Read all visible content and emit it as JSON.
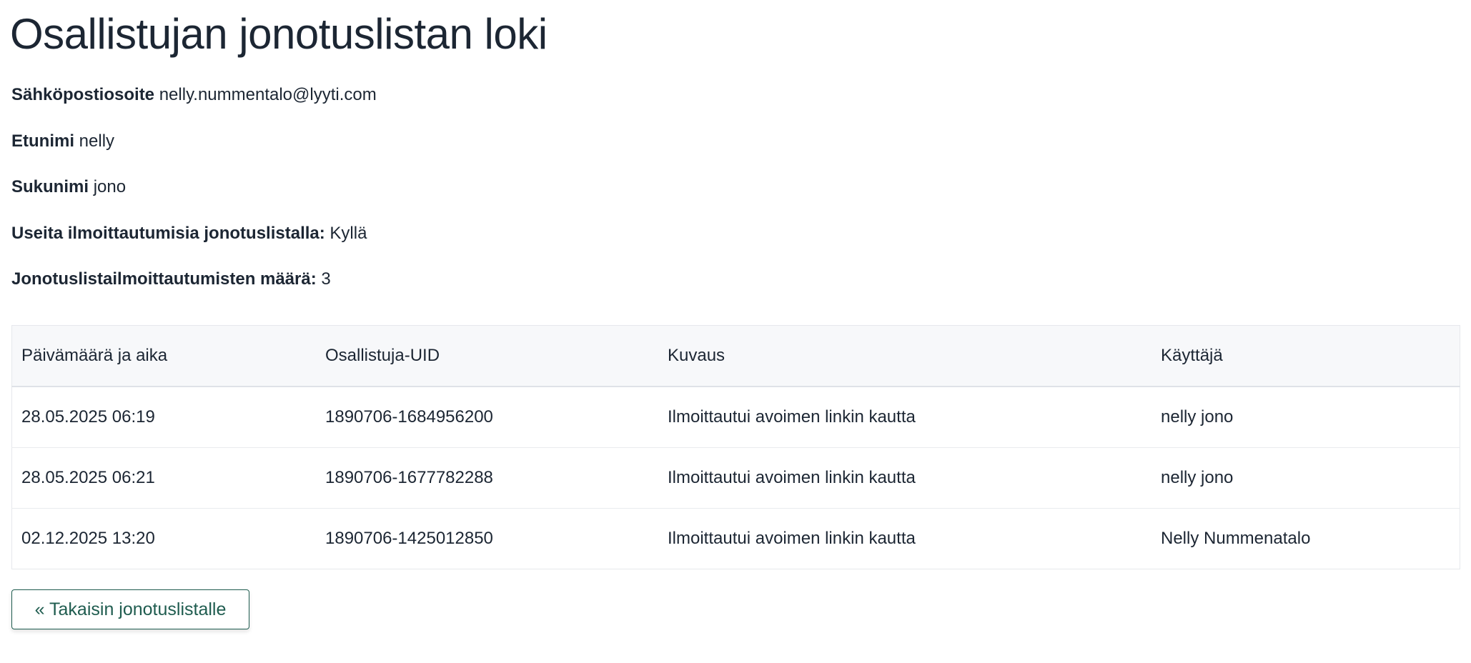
{
  "title": "Osallistujan jonotuslistan loki",
  "fields": [
    {
      "label": "Sähköpostiosoite",
      "value": "nelly.nummentalo@lyyti.com"
    },
    {
      "label": "Etunimi",
      "value": "nelly"
    },
    {
      "label": "Sukunimi",
      "value": "jono"
    },
    {
      "label": "Useita ilmoittautumisia jonotuslistalla:",
      "value": "Kyllä"
    },
    {
      "label": "Jonotuslistailmoittautumisten määrä:",
      "value": "3"
    }
  ],
  "table": {
    "headers": [
      "Päivämäärä ja aika",
      "Osallistuja-UID",
      "Kuvaus",
      "Käyttäjä"
    ],
    "rows": [
      [
        "28.05.2025 06:19",
        "1890706-1684956200",
        "Ilmoittautui avoimen linkin kautta",
        "nelly jono"
      ],
      [
        "28.05.2025 06:21",
        "1890706-1677782288",
        "Ilmoittautui avoimen linkin kautta",
        "nelly jono"
      ],
      [
        "02.12.2025 13:20",
        "1890706-1425012850",
        "Ilmoittautui avoimen linkin kautta",
        "Nelly Nummenatalo"
      ]
    ]
  },
  "back_button": "« Takaisin jonotuslistalle",
  "colors": {
    "text": "#1c2633",
    "accent": "#1f5c4f",
    "header_bg": "#f7f8fa"
  }
}
